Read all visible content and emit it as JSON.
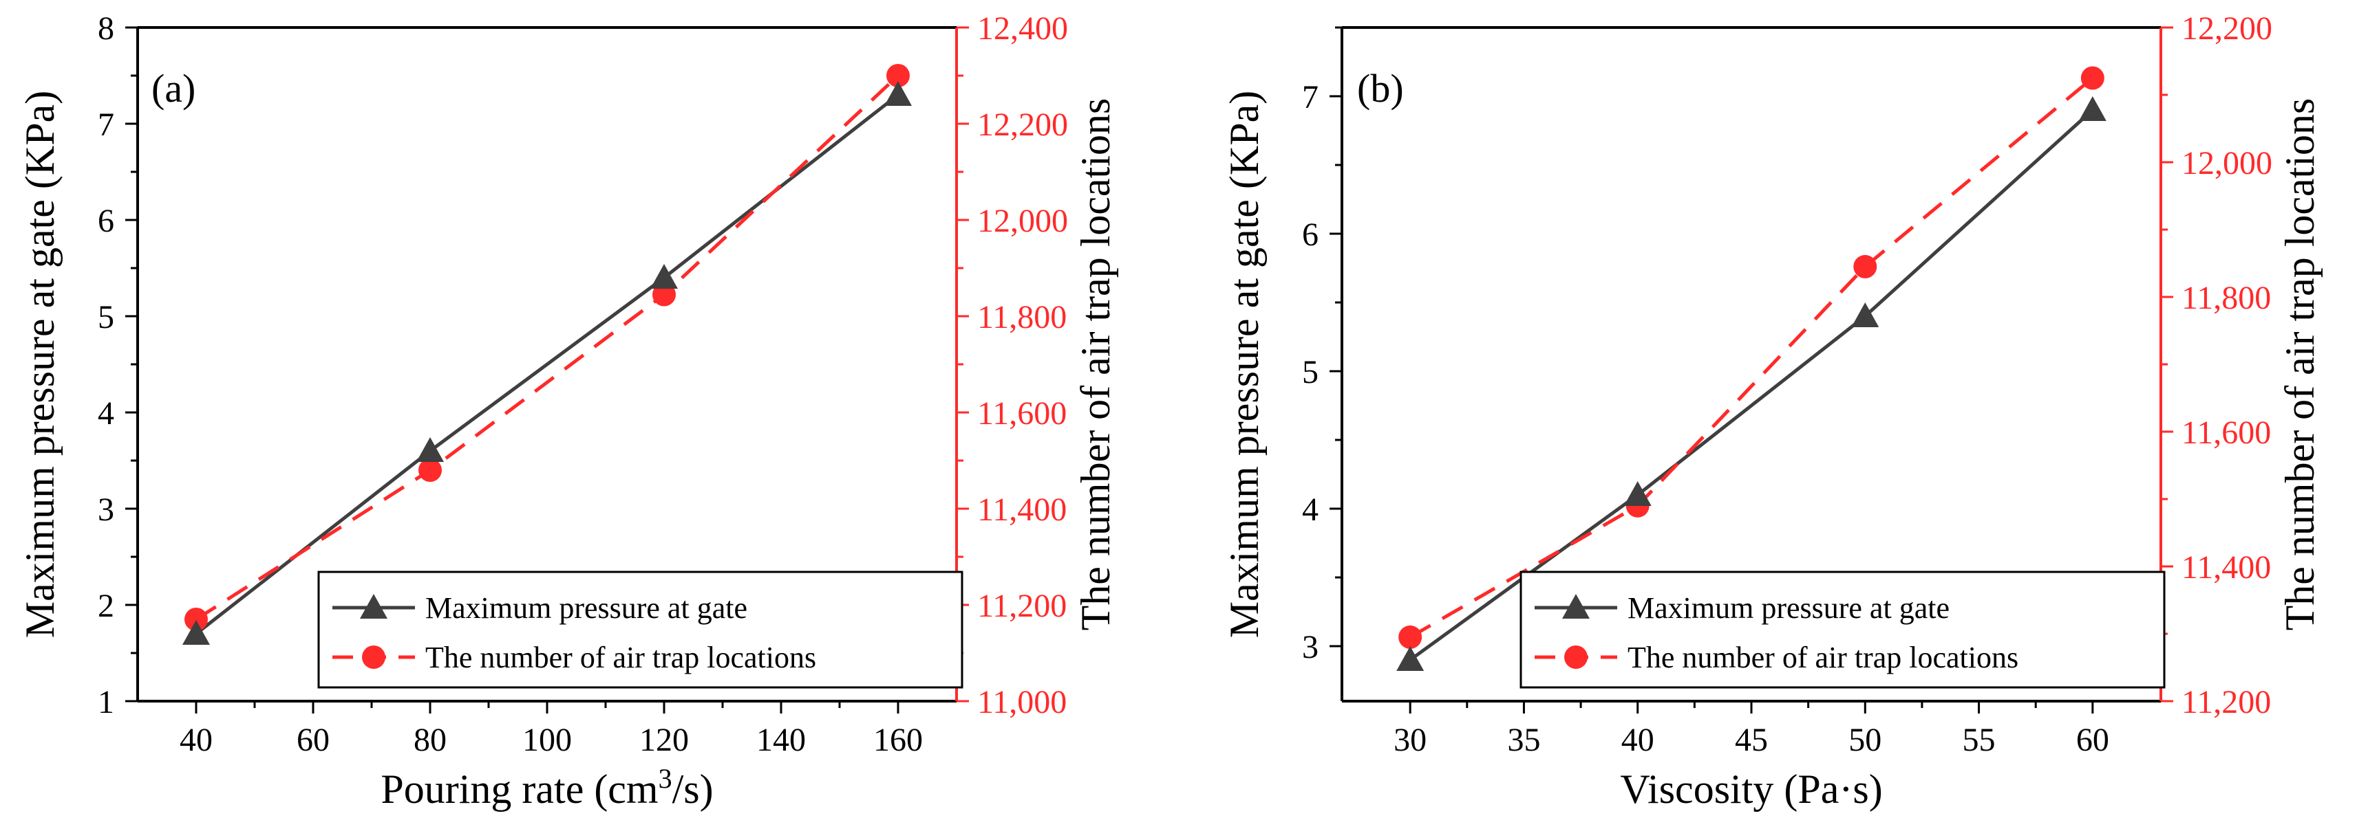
{
  "colors": {
    "primary_series": "#3f3f3f",
    "secondary_series": "#ff2a2a",
    "axis_primary": "#000000",
    "axis_secondary": "#ff2a2a"
  },
  "chart_data": [
    {
      "type": "line",
      "panel_label": "(a)",
      "xlabel": "Pouring rate (cm³/s)",
      "xlabel_main": "Pouring rate (cm",
      "xlabel_sup": "3",
      "xlabel_tail": "/s)",
      "ylabel": "Maximum pressure at gate (KPa)",
      "y2label": "The number of air trap locations",
      "xlim": [
        30,
        170
      ],
      "ylim": [
        1,
        8
      ],
      "y2lim": [
        11000,
        12400
      ],
      "xticks": [
        40,
        60,
        80,
        100,
        120,
        140,
        160
      ],
      "xtick_labels": [
        "40",
        "60",
        "80",
        "100",
        "120",
        "140",
        "160"
      ],
      "yticks": [
        1,
        2,
        3,
        4,
        5,
        6,
        7,
        8
      ],
      "ytick_labels": [
        "1",
        "2",
        "3",
        "4",
        "5",
        "6",
        "7",
        "8"
      ],
      "y2ticks": [
        11000,
        11200,
        11400,
        11600,
        11800,
        12000,
        12200,
        12400
      ],
      "y2tick_labels": [
        "11,000",
        "11,200",
        "11,400",
        "11,600",
        "11,800",
        "12,000",
        "12,200",
        "12,400"
      ],
      "legend_position": "bottom-right",
      "series": [
        {
          "name": "Maximum pressure at gate",
          "axis": "left",
          "marker": "triangle",
          "style": "solid",
          "x": [
            40,
            80,
            120,
            160
          ],
          "values": [
            1.7,
            3.6,
            5.4,
            7.3
          ]
        },
        {
          "name": "The number of air trap locations",
          "axis": "right",
          "marker": "circle",
          "style": "dashed",
          "x": [
            40,
            80,
            120,
            160
          ],
          "values": [
            11170,
            11480,
            11845,
            12300
          ]
        }
      ]
    },
    {
      "type": "line",
      "panel_label": "(b)",
      "xlabel": "Viscosity (Pa·s)",
      "ylabel": "Maximum pressure at gate (KPa)",
      "y2label": "The number of air trap locations",
      "xlim": [
        27,
        63
      ],
      "ylim": [
        2.6,
        7.5
      ],
      "y2lim": [
        11200,
        12200
      ],
      "xticks": [
        30,
        35,
        40,
        45,
        50,
        55,
        60
      ],
      "xtick_labels": [
        "30",
        "35",
        "40",
        "45",
        "50",
        "55",
        "60"
      ],
      "yticks": [
        3,
        4,
        5,
        6,
        7
      ],
      "ytick_labels": [
        "3",
        "4",
        "5",
        "6",
        "7"
      ],
      "y2ticks": [
        11200,
        11400,
        11600,
        11800,
        12000,
        12200
      ],
      "y2tick_labels": [
        "11,200",
        "11,400",
        "11,600",
        "11,800",
        "12,000",
        "12,200"
      ],
      "legend_position": "bottom-right",
      "series": [
        {
          "name": "Maximum pressure at gate",
          "axis": "left",
          "marker": "triangle",
          "style": "solid",
          "x": [
            30,
            40,
            50,
            60
          ],
          "values": [
            2.9,
            4.1,
            5.4,
            6.9
          ]
        },
        {
          "name": "The number of air trap locations",
          "axis": "right",
          "marker": "circle",
          "style": "dashed",
          "x": [
            30,
            40,
            50,
            60
          ],
          "values": [
            11295,
            11490,
            11845,
            12125
          ]
        }
      ]
    }
  ]
}
